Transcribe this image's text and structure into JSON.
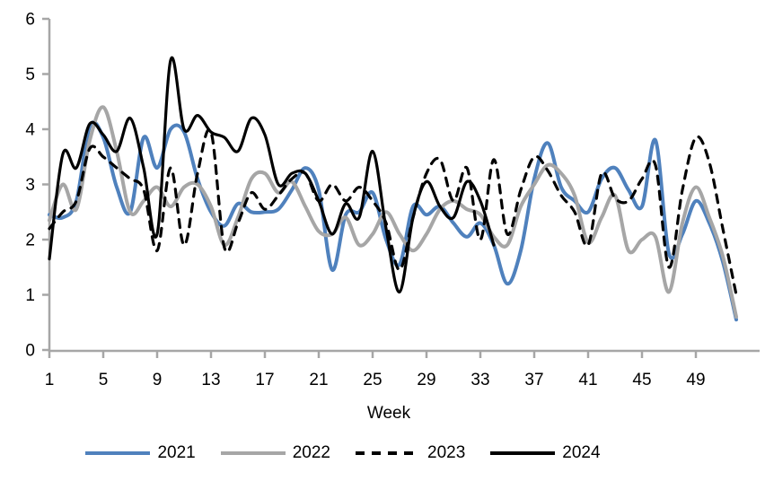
{
  "chart_data": {
    "type": "line",
    "title": "",
    "xlabel": "Week",
    "ylabel": "",
    "ylim": [
      0,
      6
    ],
    "y_ticks": [
      0,
      1,
      2,
      3,
      4,
      5,
      6
    ],
    "x_ticks": [
      1,
      5,
      9,
      13,
      17,
      21,
      25,
      29,
      33,
      37,
      41,
      45,
      49
    ],
    "x_range": [
      1,
      52
    ],
    "grid": false,
    "legend_position": "bottom",
    "axis_color": "#a6a6a6",
    "series": [
      {
        "name": "2021",
        "color": "#4f81bd",
        "style": "solid",
        "start_week": 1,
        "values": [
          2.45,
          2.4,
          2.7,
          4.05,
          3.85,
          2.95,
          2.5,
          3.85,
          3.3,
          4.0,
          3.95,
          3.1,
          2.5,
          2.25,
          2.65,
          2.5,
          2.5,
          2.55,
          2.9,
          3.3,
          2.9,
          1.45,
          2.45,
          2.5,
          2.85,
          2.0,
          1.55,
          2.6,
          2.45,
          2.6,
          2.3,
          2.05,
          2.3,
          1.9,
          1.2,
          1.8,
          3.1,
          3.75,
          2.95,
          2.7,
          2.5,
          3.1,
          3.3,
          2.9,
          2.6,
          3.8,
          1.75,
          2.1,
          2.7,
          2.3,
          1.6,
          0.55
        ]
      },
      {
        "name": "2022",
        "color": "#a6a6a6",
        "style": "solid",
        "start_week": 1,
        "values": [
          2.35,
          3.0,
          2.55,
          3.8,
          4.4,
          3.6,
          2.5,
          2.7,
          2.95,
          2.6,
          2.95,
          3.0,
          2.6,
          1.9,
          2.4,
          3.1,
          3.2,
          2.85,
          3.05,
          2.6,
          2.15,
          2.1,
          2.4,
          1.9,
          2.1,
          2.5,
          2.1,
          1.8,
          2.1,
          2.55,
          2.7,
          2.55,
          2.45,
          2.05,
          1.9,
          2.6,
          3.0,
          3.35,
          3.2,
          2.8,
          1.95,
          2.4,
          2.8,
          1.8,
          2.0,
          2.05,
          1.05,
          2.3,
          2.95,
          2.4,
          1.7,
          0.6
        ]
      },
      {
        "name": "2023",
        "color": "#000000",
        "style": "dashed",
        "start_week": 1,
        "values": [
          2.2,
          2.5,
          2.7,
          3.65,
          3.5,
          3.3,
          3.1,
          2.9,
          1.8,
          3.3,
          1.9,
          3.2,
          3.95,
          1.85,
          2.3,
          2.85,
          2.55,
          2.8,
          3.1,
          3.2,
          2.7,
          3.0,
          2.7,
          2.95,
          2.7,
          2.3,
          1.45,
          2.4,
          3.2,
          3.45,
          2.7,
          3.3,
          2.0,
          3.45,
          2.1,
          2.9,
          3.5,
          3.25,
          2.8,
          2.5,
          1.9,
          3.2,
          2.75,
          2.7,
          3.1,
          3.35,
          1.5,
          2.9,
          3.85,
          3.4,
          2.2,
          1.0
        ]
      },
      {
        "name": "2024",
        "color": "#000000",
        "style": "solid",
        "start_week": 1,
        "values": [
          1.65,
          3.55,
          3.3,
          4.1,
          3.9,
          3.6,
          4.2,
          3.3,
          2.1,
          5.25,
          4.0,
          4.25,
          3.95,
          3.85,
          3.6,
          4.2,
          3.9,
          3.0,
          3.2,
          3.2,
          2.7,
          2.1,
          2.65,
          2.4,
          3.6,
          2.2,
          1.05,
          2.4,
          3.05,
          2.6,
          2.4,
          3.05,
          2.7,
          1.9
        ]
      }
    ]
  },
  "legend": {
    "items": [
      {
        "label": "2021"
      },
      {
        "label": "2022"
      },
      {
        "label": "2023"
      },
      {
        "label": "2024"
      }
    ]
  }
}
